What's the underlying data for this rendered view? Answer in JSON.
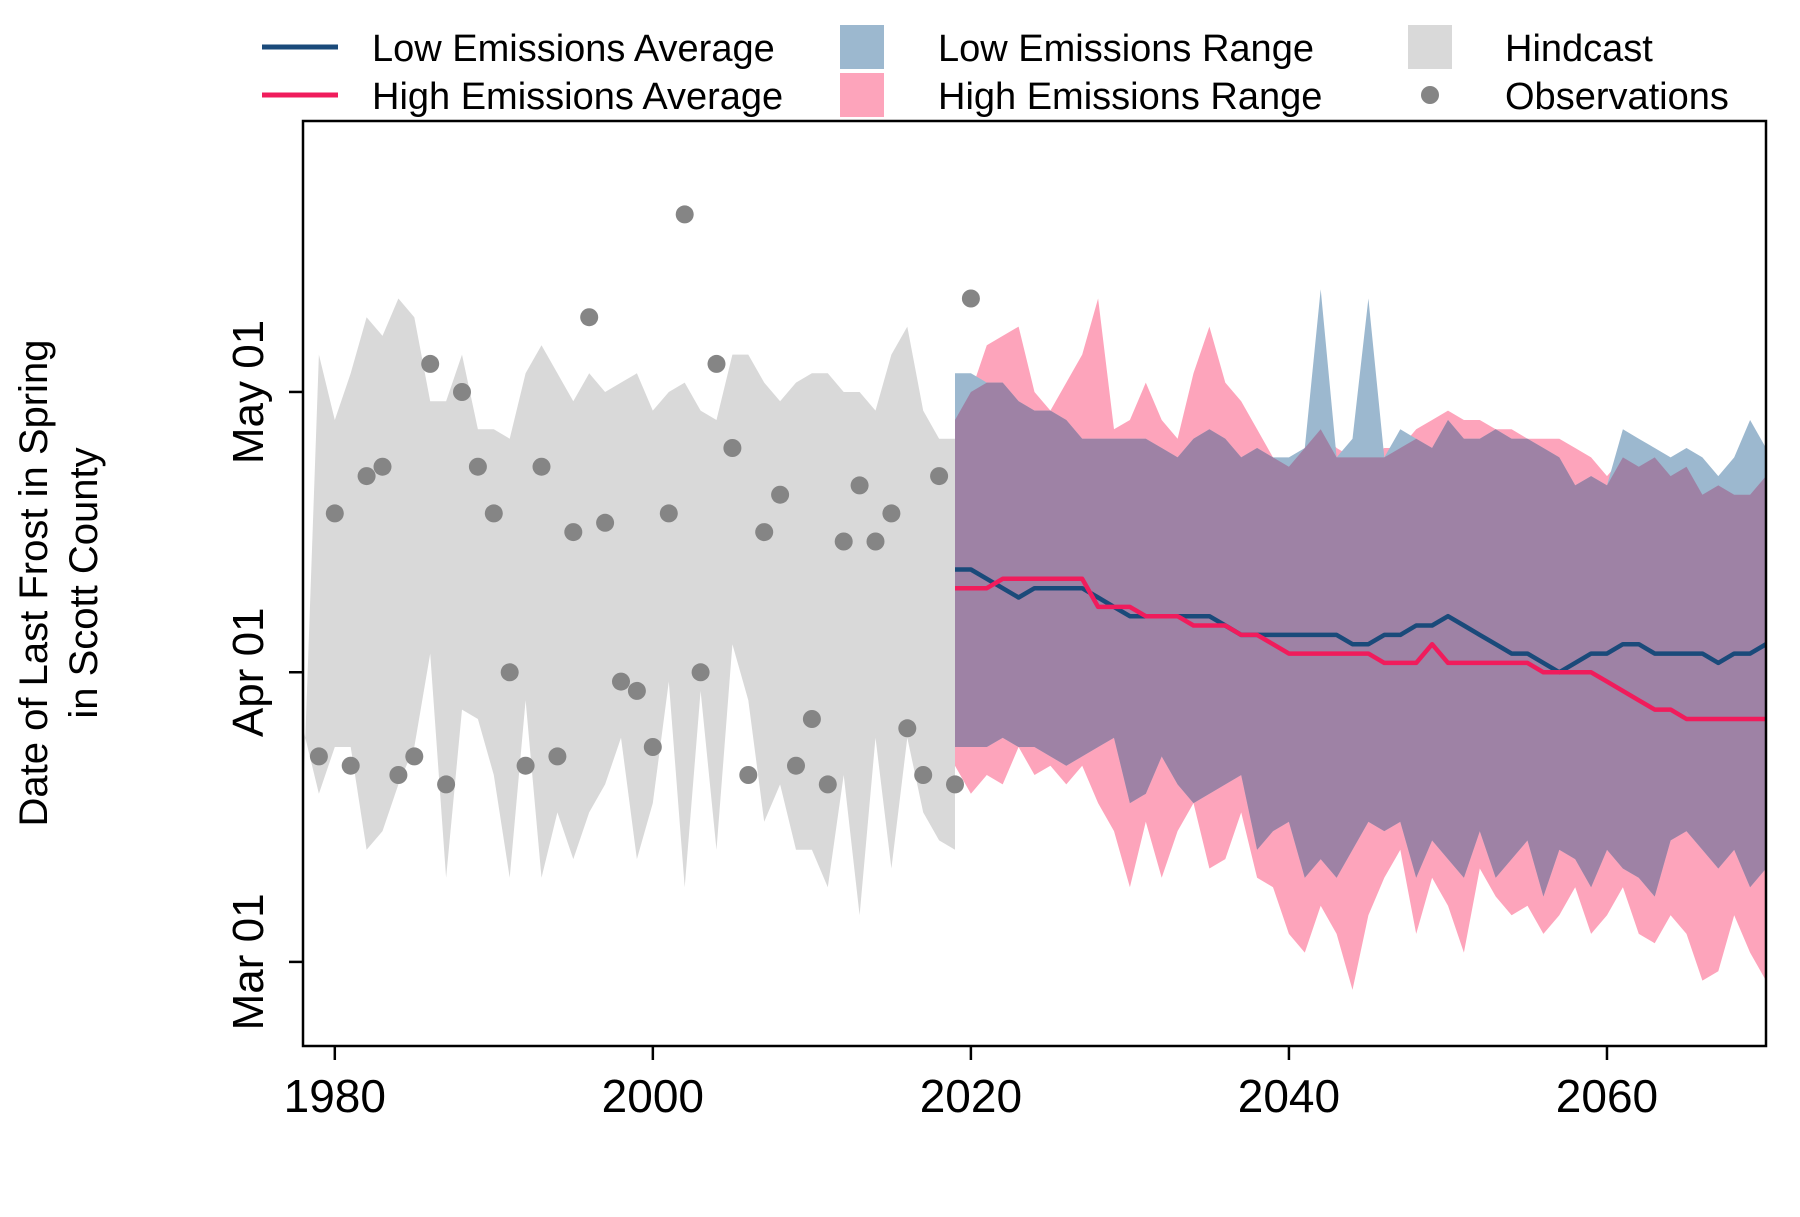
{
  "chart_data": {
    "type": "line",
    "ylabel_line1": "Date of Last Frost in Spring",
    "ylabel_line2": "in Scott County",
    "xlim": [
      1978,
      2070
    ],
    "ylim": [
      "Feb 20",
      "May 30"
    ],
    "x_ticks": [
      1980,
      2000,
      2020,
      2040,
      2060
    ],
    "y_ticks": [
      {
        "label": "Mar 01",
        "date": "Mar 01"
      },
      {
        "label": "Apr 01",
        "date": "Apr 01"
      },
      {
        "label": "May 01",
        "date": "May 01"
      }
    ],
    "grid": false,
    "legend_position": "top",
    "legend": [
      {
        "label": "Low Emissions Average",
        "kind": "line",
        "color": "#1a4a7a"
      },
      {
        "label": "High Emissions Average",
        "kind": "line",
        "color": "#f01c5c"
      },
      {
        "label": "Low Emissions Range",
        "kind": "box",
        "color": "#9cb8cf"
      },
      {
        "label": "High Emissions Range",
        "kind": "box",
        "color": "#fda4bb"
      },
      {
        "label": "Hindcast",
        "kind": "box",
        "color": "#d9d9d9"
      },
      {
        "label": "Observations",
        "kind": "point",
        "color": "#858585"
      }
    ],
    "colors": {
      "low_line": "#1a4a7a",
      "high_line": "#f01c5c",
      "low_range": "#9cb8cf",
      "high_range": "#fda4bb",
      "overlap": "#9e82a5",
      "hindcast": "#d9d9d9",
      "obs": "#858585"
    },
    "observations": {
      "x": [
        1979,
        1980,
        1981,
        1982,
        1983,
        1984,
        1985,
        1986,
        1987,
        1988,
        1989,
        1990,
        1991,
        1992,
        1993,
        1994,
        1995,
        1996,
        1997,
        1998,
        1999,
        2000,
        2001,
        2002,
        2003,
        2004,
        2005,
        2006,
        2007,
        2008,
        2009,
        2010,
        2011,
        2012,
        2013,
        2014,
        2015,
        2016,
        2017,
        2018,
        2019,
        2020
      ],
      "y": [
        "Mar 23",
        "Apr 18",
        "Mar 22",
        "Apr 22",
        "Apr 23",
        "Mar 21",
        "Mar 23",
        "May 04",
        "Mar 20",
        "May 01",
        "Apr 23",
        "Apr 18",
        "Apr 01",
        "Mar 22",
        "Apr 23",
        "Mar 23",
        "Apr 16",
        "May 09",
        "Apr 17",
        "Mar 31",
        "Mar 30",
        "Mar 24",
        "Apr 18",
        "May 20",
        "Apr 01",
        "May 04",
        "Apr 25",
        "Mar 21",
        "Apr 16",
        "Apr 20",
        "Mar 22",
        "Mar 27",
        "Mar 20",
        "Apr 15",
        "Apr 21",
        "Apr 15",
        "Apr 18",
        "Mar 26",
        "Mar 21",
        "Apr 22",
        "Mar 20",
        "May 11"
      ]
    },
    "hindcast_range": {
      "x": [
        1978,
        1979,
        1980,
        1981,
        1982,
        1983,
        1984,
        1985,
        1986,
        1987,
        1988,
        1989,
        1990,
        1991,
        1992,
        1993,
        1994,
        1995,
        1996,
        1997,
        1998,
        1999,
        2000,
        2001,
        2002,
        2003,
        2004,
        2005,
        2006,
        2007,
        2008,
        2009,
        2010,
        2011,
        2012,
        2013,
        2014,
        2015,
        2016,
        2017,
        2018,
        2019
      ],
      "low": [
        "Mar 26",
        "Mar 19",
        "Mar 24",
        "Mar 24",
        "Mar 13",
        "Mar 15",
        "Mar 20",
        "Mar 24",
        "Apr 03",
        "Mar 10",
        "Mar 28",
        "Mar 27",
        "Mar 21",
        "Mar 10",
        "Mar 29",
        "Mar 10",
        "Mar 17",
        "Mar 12",
        "Mar 17",
        "Mar 20",
        "Mar 25",
        "Mar 12",
        "Mar 18",
        "Mar 31",
        "Mar 09",
        "Mar 30",
        "Mar 13",
        "Apr 04",
        "Mar 29",
        "Mar 16",
        "Mar 20",
        "Mar 13",
        "Mar 13",
        "Mar 09",
        "Mar 21",
        "Mar 06",
        "Mar 25",
        "Mar 11",
        "Mar 25",
        "Mar 17",
        "Mar 14",
        "Mar 13"
      ],
      "high": [
        "Mar 18",
        "May 05",
        "Apr 28",
        "May 03",
        "May 09",
        "May 07",
        "May 11",
        "May 09",
        "Apr 30",
        "Apr 30",
        "May 05",
        "Apr 27",
        "Apr 27",
        "Apr 26",
        "May 03",
        "May 06",
        "May 03",
        "Apr 30",
        "May 03",
        "May 01",
        "May 02",
        "May 03",
        "Apr 29",
        "May 01",
        "May 02",
        "Apr 29",
        "Apr 28",
        "May 05",
        "May 05",
        "May 02",
        "Apr 30",
        "May 02",
        "May 03",
        "May 03",
        "May 01",
        "May 01",
        "Apr 29",
        "May 05",
        "May 08",
        "Apr 29",
        "Apr 26",
        "Apr 26"
      ]
    },
    "series": [
      {
        "name": "Low Emissions Average",
        "x": [
          2019,
          2020,
          2021,
          2022,
          2023,
          2024,
          2025,
          2026,
          2027,
          2028,
          2029,
          2030,
          2031,
          2032,
          2033,
          2034,
          2035,
          2036,
          2037,
          2038,
          2039,
          2040,
          2041,
          2042,
          2043,
          2044,
          2045,
          2046,
          2047,
          2048,
          2049,
          2050,
          2051,
          2052,
          2053,
          2054,
          2055,
          2056,
          2057,
          2058,
          2059,
          2060,
          2061,
          2062,
          2063,
          2064,
          2065,
          2066,
          2067,
          2068,
          2069,
          2070
        ],
        "y": [
          "Apr 12",
          "Apr 12",
          "Apr 11",
          "Apr 10",
          "Apr 09",
          "Apr 10",
          "Apr 10",
          "Apr 10",
          "Apr 10",
          "Apr 09",
          "Apr 08",
          "Apr 07",
          "Apr 07",
          "Apr 07",
          "Apr 07",
          "Apr 07",
          "Apr 07",
          "Apr 06",
          "Apr 05",
          "Apr 05",
          "Apr 05",
          "Apr 05",
          "Apr 05",
          "Apr 05",
          "Apr 05",
          "Apr 04",
          "Apr 04",
          "Apr 05",
          "Apr 05",
          "Apr 06",
          "Apr 06",
          "Apr 07",
          "Apr 06",
          "Apr 05",
          "Apr 04",
          "Apr 03",
          "Apr 03",
          "Apr 02",
          "Apr 01",
          "Apr 02",
          "Apr 03",
          "Apr 03",
          "Apr 04",
          "Apr 04",
          "Apr 03",
          "Apr 03",
          "Apr 03",
          "Apr 03",
          "Apr 02",
          "Apr 03",
          "Apr 03",
          "Apr 04"
        ]
      },
      {
        "name": "High Emissions Average",
        "x": [
          2019,
          2020,
          2021,
          2022,
          2023,
          2024,
          2025,
          2026,
          2027,
          2028,
          2029,
          2030,
          2031,
          2032,
          2033,
          2034,
          2035,
          2036,
          2037,
          2038,
          2039,
          2040,
          2041,
          2042,
          2043,
          2044,
          2045,
          2046,
          2047,
          2048,
          2049,
          2050,
          2051,
          2052,
          2053,
          2054,
          2055,
          2056,
          2057,
          2058,
          2059,
          2060,
          2061,
          2062,
          2063,
          2064,
          2065,
          2066,
          2067,
          2068,
          2069,
          2070
        ],
        "y": [
          "Apr 10",
          "Apr 10",
          "Apr 10",
          "Apr 11",
          "Apr 11",
          "Apr 11",
          "Apr 11",
          "Apr 11",
          "Apr 11",
          "Apr 08",
          "Apr 08",
          "Apr 08",
          "Apr 07",
          "Apr 07",
          "Apr 07",
          "Apr 06",
          "Apr 06",
          "Apr 06",
          "Apr 05",
          "Apr 05",
          "Apr 04",
          "Apr 03",
          "Apr 03",
          "Apr 03",
          "Apr 03",
          "Apr 03",
          "Apr 03",
          "Apr 02",
          "Apr 02",
          "Apr 02",
          "Apr 04",
          "Apr 02",
          "Apr 02",
          "Apr 02",
          "Apr 02",
          "Apr 02",
          "Apr 02",
          "Apr 01",
          "Apr 01",
          "Apr 01",
          "Apr 01",
          "Mar 31",
          "Mar 30",
          "Mar 29",
          "Mar 28",
          "Mar 28",
          "Mar 27",
          "Mar 27",
          "Mar 27",
          "Mar 27",
          "Mar 27",
          "Mar 27"
        ]
      }
    ],
    "low_range": {
      "x": [
        2019,
        2020,
        2021,
        2022,
        2023,
        2024,
        2025,
        2026,
        2027,
        2028,
        2029,
        2030,
        2031,
        2032,
        2033,
        2034,
        2035,
        2036,
        2037,
        2038,
        2039,
        2040,
        2041,
        2042,
        2043,
        2044,
        2045,
        2046,
        2047,
        2048,
        2049,
        2050,
        2051,
        2052,
        2053,
        2054,
        2055,
        2056,
        2057,
        2058,
        2059,
        2060,
        2061,
        2062,
        2063,
        2064,
        2065,
        2066,
        2067,
        2068,
        2069,
        2070
      ],
      "low": [
        "Mar 24",
        "Mar 24",
        "Mar 24",
        "Mar 25",
        "Mar 24",
        "Mar 24",
        "Mar 23",
        "Mar 22",
        "Mar 23",
        "Mar 24",
        "Mar 25",
        "Mar 18",
        "Mar 19",
        "Mar 23",
        "Mar 20",
        "Mar 18",
        "Mar 19",
        "Mar 20",
        "Mar 21",
        "Mar 13",
        "Mar 15",
        "Mar 16",
        "Mar 10",
        "Mar 12",
        "Mar 10",
        "Mar 13",
        "Mar 16",
        "Mar 15",
        "Mar 16",
        "Mar 10",
        "Mar 14",
        "Mar 12",
        "Mar 10",
        "Mar 15",
        "Mar 10",
        "Mar 12",
        "Mar 14",
        "Mar 08",
        "Mar 13",
        "Mar 12",
        "Mar 09",
        "Mar 13",
        "Mar 11",
        "Mar 10",
        "Mar 08",
        "Mar 14",
        "Mar 15",
        "Mar 13",
        "Mar 11",
        "Mar 13",
        "Mar 09",
        "Mar 11"
      ],
      "high": [
        "May 03",
        "May 03",
        "May 02",
        "May 02",
        "Apr 30",
        "Apr 29",
        "Apr 29",
        "Apr 28",
        "Apr 26",
        "Apr 26",
        "Apr 26",
        "Apr 26",
        "Apr 26",
        "Apr 25",
        "Apr 24",
        "Apr 26",
        "Apr 27",
        "Apr 26",
        "Apr 24",
        "Apr 25",
        "Apr 24",
        "Apr 24",
        "Apr 25",
        "May 12",
        "Apr 24",
        "Apr 26",
        "May 11",
        "Apr 24",
        "Apr 27",
        "Apr 26",
        "Apr 25",
        "Apr 28",
        "Apr 26",
        "Apr 26",
        "Apr 27",
        "Apr 26",
        "Apr 26",
        "Apr 25",
        "Apr 24",
        "Apr 21",
        "Apr 22",
        "Apr 21",
        "Apr 27",
        "Apr 26",
        "Apr 25",
        "Apr 24",
        "Apr 25",
        "Apr 24",
        "Apr 22",
        "Apr 24",
        "Apr 28",
        "Apr 25"
      ]
    },
    "high_range": {
      "x": [
        2019,
        2020,
        2021,
        2022,
        2023,
        2024,
        2025,
        2026,
        2027,
        2028,
        2029,
        2030,
        2031,
        2032,
        2033,
        2034,
        2035,
        2036,
        2037,
        2038,
        2039,
        2040,
        2041,
        2042,
        2043,
        2044,
        2045,
        2046,
        2047,
        2048,
        2049,
        2050,
        2051,
        2052,
        2053,
        2054,
        2055,
        2056,
        2057,
        2058,
        2059,
        2060,
        2061,
        2062,
        2063,
        2064,
        2065,
        2066,
        2067,
        2068,
        2069,
        2070
      ],
      "low": [
        "Mar 22",
        "Mar 19",
        "Mar 21",
        "Mar 20",
        "Mar 24",
        "Mar 21",
        "Mar 22",
        "Mar 20",
        "Mar 22",
        "Mar 18",
        "Mar 15",
        "Mar 09",
        "Mar 16",
        "Mar 10",
        "Mar 15",
        "Mar 18",
        "Mar 11",
        "Mar 12",
        "Mar 17",
        "Mar 10",
        "Mar 09",
        "Mar 04",
        "Mar 02",
        "Mar 07",
        "Mar 04",
        "Feb 26",
        "Mar 06",
        "Mar 10",
        "Mar 13",
        "Mar 04",
        "Mar 10",
        "Mar 07",
        "Mar 02",
        "Mar 11",
        "Mar 08",
        "Mar 06",
        "Mar 07",
        "Mar 04",
        "Mar 06",
        "Mar 09",
        "Mar 04",
        "Mar 06",
        "Mar 09",
        "Mar 04",
        "Mar 03",
        "Mar 06",
        "Mar 04",
        "Feb 27",
        "Feb 28",
        "Mar 06",
        "Mar 02",
        "Feb 27"
      ],
      "high": [
        "Apr 28",
        "May 01",
        "May 06",
        "May 07",
        "May 08",
        "May 01",
        "Apr 29",
        "May 02",
        "May 05",
        "May 11",
        "Apr 27",
        "Apr 28",
        "May 02",
        "Apr 28",
        "Apr 26",
        "May 03",
        "May 08",
        "May 02",
        "Apr 30",
        "Apr 27",
        "Apr 24",
        "Apr 23",
        "Apr 25",
        "Apr 27",
        "Apr 25",
        "Apr 24",
        "Apr 24",
        "Apr 25",
        "Apr 25",
        "Apr 27",
        "Apr 28",
        "Apr 29",
        "Apr 28",
        "Apr 28",
        "Apr 27",
        "Apr 27",
        "Apr 26",
        "Apr 26",
        "Apr 26",
        "Apr 25",
        "Apr 24",
        "Apr 22",
        "Apr 24",
        "Apr 23",
        "Apr 24",
        "Apr 22",
        "Apr 23",
        "Apr 20",
        "Apr 21",
        "Apr 20",
        "Apr 20",
        "Apr 22"
      ]
    }
  }
}
